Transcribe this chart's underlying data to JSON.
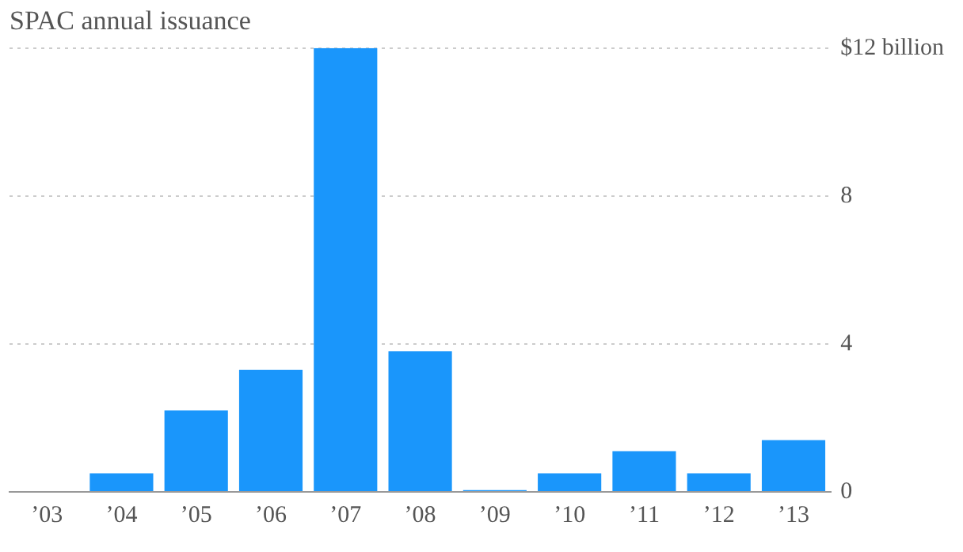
{
  "chart_data": {
    "type": "bar",
    "title": "SPAC annual issuance",
    "categories": [
      "’03",
      "’04",
      "’05",
      "’06",
      "’07",
      "’08",
      "’09",
      "’10",
      "’11",
      "’12",
      "’13"
    ],
    "values": [
      0,
      0.5,
      2.2,
      3.3,
      12,
      3.8,
      0.05,
      0.5,
      1.1,
      0.5,
      1.4
    ],
    "color": "#1a96fb",
    "ylim": [
      0,
      12
    ],
    "yticks": [
      0,
      4,
      8,
      {
        "value": 12,
        "label": "$12 billion"
      }
    ],
    "grid": "y",
    "legend": false
  }
}
